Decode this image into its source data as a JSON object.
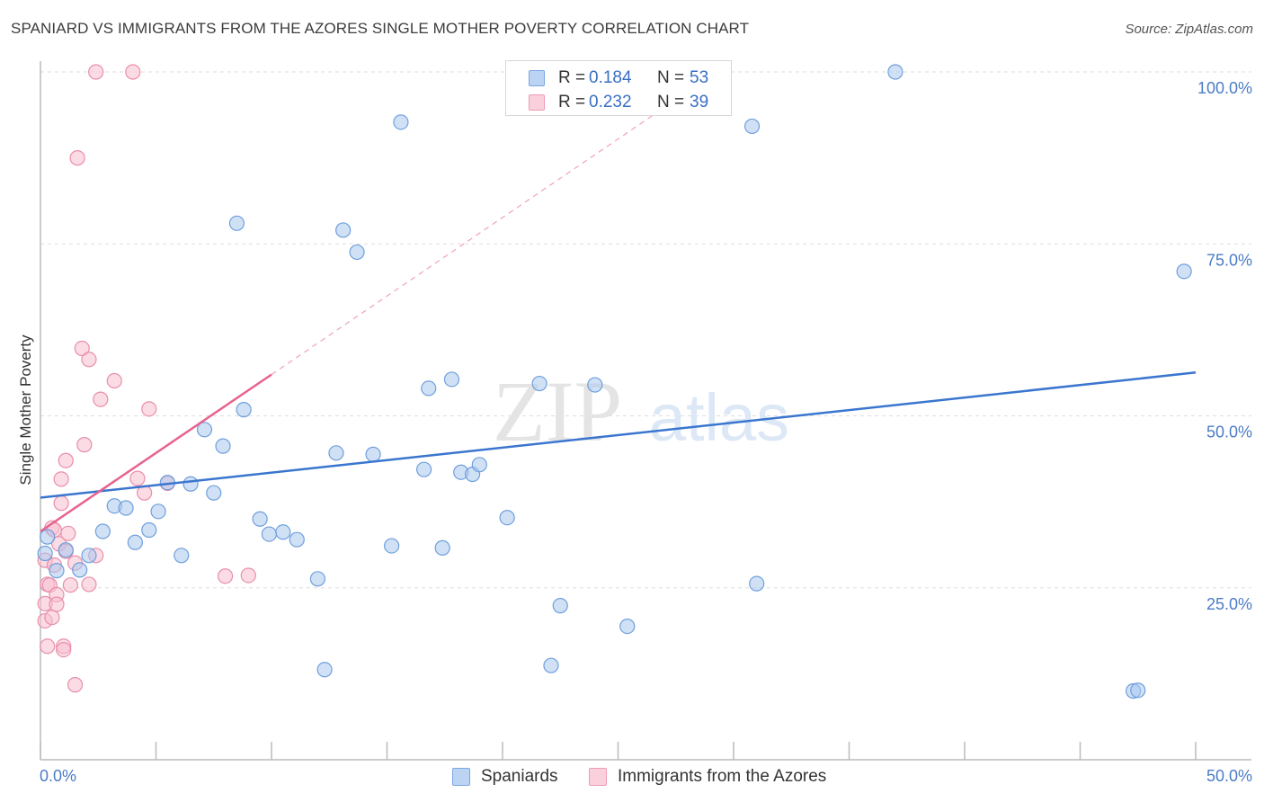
{
  "title": "SPANIARD VS IMMIGRANTS FROM THE AZORES SINGLE MOTHER POVERTY CORRELATION CHART",
  "source": "Source: ZipAtlas.com",
  "watermark": {
    "zip": "ZIP",
    "atlas": "atlas"
  },
  "legend": {
    "r_label": "R =",
    "n_label": "N =",
    "rows": [
      {
        "r": "0.184",
        "n": "53"
      },
      {
        "r": "0.232",
        "n": "39"
      }
    ]
  },
  "colors": {
    "blue_fill": "#aac8ef",
    "blue_stroke": "#6f9fdc",
    "blue_line": "#3a76cf",
    "pink_fill": "#f7bfd0",
    "pink_stroke": "#e88eab",
    "pink_line": "#e8628f",
    "grid": "#dedede",
    "tick_text": "#4a7cc7"
  },
  "chart_data": {
    "type": "scatter",
    "title": "SPANIARD VS IMMIGRANTS FROM THE AZORES SINGLE MOTHER POVERTY CORRELATION CHART",
    "xlabel": "",
    "ylabel": "Single Mother Poverty",
    "xlim": [
      0,
      50
    ],
    "ylim": [
      0,
      105
    ],
    "x_tick_labels": [
      "0.0%",
      "50.0%"
    ],
    "y_ticks": [
      25,
      50,
      75,
      100
    ],
    "y_tick_labels": [
      "25.0%",
      "50.0%",
      "75.0%",
      "100.0%"
    ],
    "grid": true,
    "legend_position": "top-center",
    "series": [
      {
        "name": "Spaniards",
        "color": "#6f9fdc",
        "r": 0.184,
        "n": 53,
        "trend": {
          "x": [
            0,
            50
          ],
          "y": [
            38.1,
            56.3
          ],
          "style": "solid"
        },
        "points": [
          [
            0.2,
            30.0
          ],
          [
            0.7,
            27.5
          ],
          [
            1.1,
            30.5
          ],
          [
            2.1,
            29.7
          ],
          [
            1.7,
            27.6
          ],
          [
            2.7,
            33.2
          ],
          [
            3.2,
            36.9
          ],
          [
            3.7,
            36.6
          ],
          [
            4.1,
            31.6
          ],
          [
            4.7,
            33.4
          ],
          [
            5.1,
            36.1
          ],
          [
            6.1,
            29.7
          ],
          [
            5.5,
            40.3
          ],
          [
            6.5,
            40.1
          ],
          [
            7.1,
            48.0
          ],
          [
            7.5,
            38.8
          ],
          [
            7.9,
            45.6
          ],
          [
            8.5,
            78.0
          ],
          [
            8.8,
            50.9
          ],
          [
            9.5,
            35.0
          ],
          [
            9.9,
            32.8
          ],
          [
            10.5,
            33.1
          ],
          [
            11.1,
            32.0
          ],
          [
            12.0,
            26.3
          ],
          [
            12.3,
            13.1
          ],
          [
            12.8,
            44.6
          ],
          [
            13.1,
            77.0
          ],
          [
            13.7,
            73.8
          ],
          [
            14.4,
            44.4
          ],
          [
            15.2,
            31.1
          ],
          [
            15.6,
            92.7
          ],
          [
            16.6,
            42.2
          ],
          [
            16.8,
            54.0
          ],
          [
            17.4,
            30.8
          ],
          [
            17.8,
            55.3
          ],
          [
            18.2,
            41.8
          ],
          [
            18.7,
            41.5
          ],
          [
            19.0,
            42.9
          ],
          [
            20.2,
            35.2
          ],
          [
            21.6,
            54.7
          ],
          [
            22.1,
            13.7
          ],
          [
            22.5,
            22.4
          ],
          [
            24.0,
            54.5
          ],
          [
            25.4,
            19.4
          ],
          [
            27.9,
            100.0
          ],
          [
            30.8,
            92.1
          ],
          [
            31.0,
            25.6
          ],
          [
            47.3,
            10.0
          ],
          [
            47.5,
            10.1
          ],
          [
            49.5,
            71.0
          ],
          [
            37.0,
            100.0
          ],
          [
            21.3,
            100.0
          ],
          [
            0.3,
            32.4
          ]
        ]
      },
      {
        "name": "Immigrants from the Azores",
        "color": "#e88eab",
        "r": 0.232,
        "n": 39,
        "trend": {
          "x": [
            0,
            10
          ],
          "y": [
            33.2,
            56.0
          ],
          "style": "solid"
        },
        "trend_extended": {
          "x": [
            10,
            28
          ],
          "y": [
            56.0,
            97.1
          ],
          "style": "dashed"
        },
        "points": [
          [
            0.2,
            29.0
          ],
          [
            0.3,
            25.5
          ],
          [
            0.2,
            22.7
          ],
          [
            0.2,
            20.2
          ],
          [
            0.3,
            16.5
          ],
          [
            0.4,
            25.4
          ],
          [
            0.5,
            33.7
          ],
          [
            0.6,
            33.4
          ],
          [
            0.5,
            20.7
          ],
          [
            0.6,
            28.3
          ],
          [
            0.7,
            24.0
          ],
          [
            0.7,
            22.6
          ],
          [
            0.8,
            31.4
          ],
          [
            0.9,
            40.8
          ],
          [
            0.9,
            37.3
          ],
          [
            1.0,
            16.5
          ],
          [
            1.0,
            16.0
          ],
          [
            1.1,
            43.5
          ],
          [
            1.1,
            30.3
          ],
          [
            1.2,
            32.9
          ],
          [
            1.3,
            25.4
          ],
          [
            1.5,
            28.6
          ],
          [
            1.5,
            10.9
          ],
          [
            1.6,
            87.5
          ],
          [
            1.8,
            59.8
          ],
          [
            1.9,
            45.8
          ],
          [
            2.1,
            58.2
          ],
          [
            2.1,
            25.5
          ],
          [
            2.4,
            29.7
          ],
          [
            2.6,
            52.4
          ],
          [
            2.4,
            100.0
          ],
          [
            3.2,
            55.1
          ],
          [
            4.2,
            40.9
          ],
          [
            4.5,
            38.8
          ],
          [
            4.7,
            51.0
          ],
          [
            5.5,
            40.2
          ],
          [
            8.0,
            26.7
          ],
          [
            9.0,
            26.8
          ],
          [
            4.0,
            100.0
          ]
        ]
      }
    ]
  },
  "bottom_legend": [
    {
      "label": "Spaniards"
    },
    {
      "label": "Immigrants from the Azores"
    }
  ]
}
